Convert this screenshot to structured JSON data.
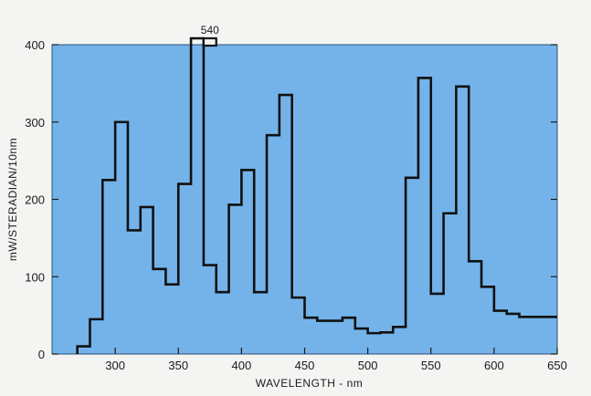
{
  "chart_data": {
    "type": "line",
    "title": "",
    "xlabel": "WAVELENGTH - nm",
    "ylabel": "mW/STERADIAN/10nm",
    "xlim": [
      250,
      650
    ],
    "ylim": [
      0,
      400
    ],
    "x_ticks": [
      "300",
      "350",
      "400",
      "450",
      "500",
      "550",
      "600",
      "650"
    ],
    "y_ticks": [
      "0",
      "100",
      "200",
      "300",
      "400"
    ],
    "grid": false,
    "colors": {
      "plot_background": "#73b3ea",
      "line": "#111111",
      "page_background": "#f4f4f2"
    },
    "step_edges": [
      270,
      280,
      290,
      300,
      310,
      320,
      330,
      340,
      350,
      360,
      370,
      380,
      390,
      400,
      410,
      420,
      430,
      440,
      450,
      460,
      470,
      480,
      490,
      500,
      510,
      520,
      530,
      540,
      550,
      560,
      570,
      580,
      590,
      600,
      610,
      620,
      630,
      650
    ],
    "series": [
      {
        "values": [
          10,
          45,
          225,
          300,
          160,
          190,
          110,
          90,
          220,
          540,
          115,
          80,
          193,
          238,
          80,
          283,
          335,
          73,
          47,
          43,
          43,
          47,
          33,
          27,
          28,
          35,
          228,
          357,
          78,
          182,
          346,
          120,
          87,
          56,
          52,
          48,
          48
        ]
      }
    ],
    "annotations": [
      {
        "text": "540",
        "x": 370,
        "value": 540
      }
    ]
  }
}
